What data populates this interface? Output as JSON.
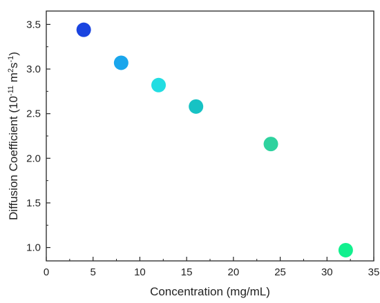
{
  "chart_data": {
    "type": "scatter",
    "xlabel": "Concentration (mg/mL)",
    "ylabel": {
      "main": "Diffusion Coefficient (10",
      "exp1": "-11",
      "mid": " m",
      "exp2": "2",
      "mid2": "s",
      "exp3": "-1",
      "end": ")"
    },
    "xlim": [
      0,
      35
    ],
    "ylim": [
      0.85,
      3.65
    ],
    "x_ticks": [
      0,
      5,
      10,
      15,
      20,
      25,
      30,
      35
    ],
    "x_tick_labels": [
      "0",
      "5",
      "10",
      "15",
      "20",
      "25",
      "30",
      "35"
    ],
    "y_ticks": [
      1.0,
      1.5,
      2.0,
      2.5,
      3.0,
      3.5
    ],
    "y_tick_labels": [
      "1.0",
      "1.5",
      "2.0",
      "2.5",
      "3.0",
      "3.5"
    ],
    "grid": false,
    "points": [
      {
        "x": 4,
        "y": 3.44,
        "color": "#1a44e0"
      },
      {
        "x": 8,
        "y": 3.07,
        "color": "#1aa6ec"
      },
      {
        "x": 12,
        "y": 2.82,
        "color": "#22dde2"
      },
      {
        "x": 16,
        "y": 2.58,
        "color": "#17c2c4"
      },
      {
        "x": 24,
        "y": 2.16,
        "color": "#2ed29e"
      },
      {
        "x": 32,
        "y": 0.97,
        "color": "#12f08e"
      }
    ]
  }
}
